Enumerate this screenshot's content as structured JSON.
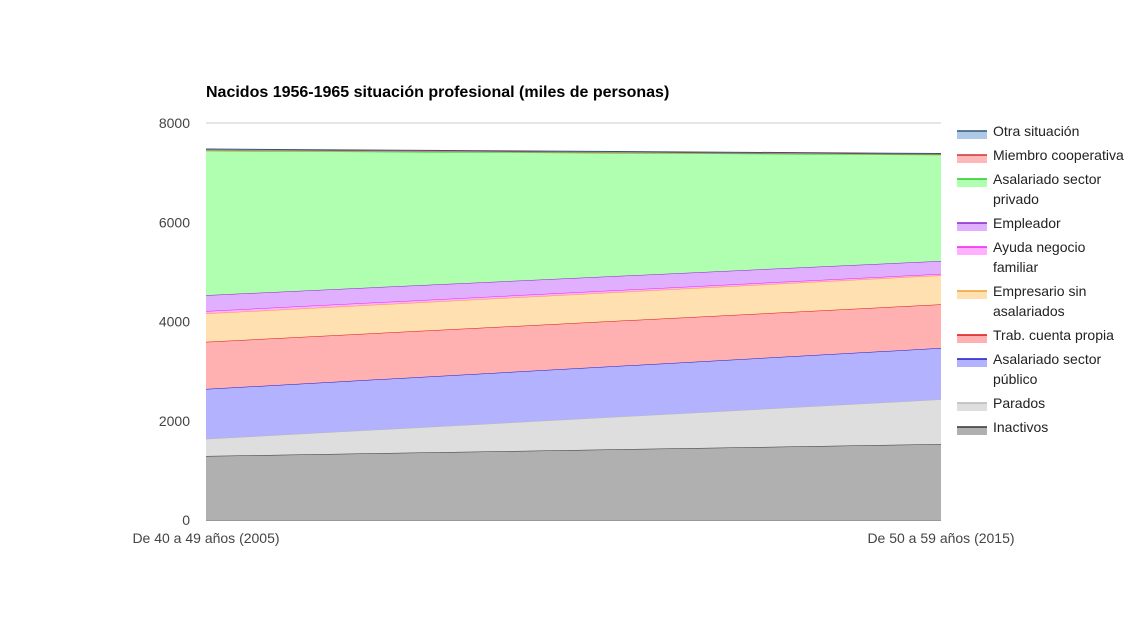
{
  "chart_data": {
    "type": "area",
    "stacked": true,
    "title": "Nacidos 1956-1965 situación profesional (miles de personas)",
    "xlabel": "",
    "ylabel": "",
    "categories": [
      "De 40 a 49 años (2005)",
      "De 50 a 59 años (2015)"
    ],
    "ylim": [
      0,
      8000
    ],
    "yticks": [
      "0",
      "2000",
      "4000",
      "6000",
      "8000"
    ],
    "grid": true,
    "legend_position": "right",
    "series": [
      {
        "name": "Inactivos",
        "values": [
          1290,
          1530
        ],
        "color": "#b0b0b0",
        "line": "#333333"
      },
      {
        "name": "Parados",
        "values": [
          345,
          900
        ],
        "color": "#dedede",
        "line": "#b8b8b8"
      },
      {
        "name": "Asalariado sector público",
        "values": [
          1005,
          1035
        ],
        "color": "#b2b2ff",
        "line": "#1a1acc"
      },
      {
        "name": "Trab. cuenta propia",
        "values": [
          950,
          880
        ],
        "color": "#ffb0b0",
        "line": "#dd1111"
      },
      {
        "name": "Empresario sin asalariados",
        "values": [
          570,
          585
        ],
        "color": "#ffe0b0",
        "line": "#f0a030"
      },
      {
        "name": "Ayuda negocio familiar",
        "values": [
          50,
          30
        ],
        "color": "#ffb0ff",
        "line": "#ee22ee"
      },
      {
        "name": "Empleador",
        "values": [
          320,
          260
        ],
        "color": "#e0b0ff",
        "line": "#8822cc"
      },
      {
        "name": "Asalariado sector privado",
        "values": [
          2910,
          2140
        ],
        "color": "#b0ffb0",
        "line": "#22cc22"
      },
      {
        "name": "Miembro cooperativa",
        "values": [
          20,
          15
        ],
        "color": "#ffb8b8",
        "line": "#cc3333"
      },
      {
        "name": "Otra situación",
        "values": [
          15,
          10
        ],
        "color": "#b0c8e8",
        "line": "#335577"
      }
    ],
    "legend_order": [
      {
        "index": 9,
        "lines": [
          "Otra situación"
        ]
      },
      {
        "index": 8,
        "lines": [
          "Miembro cooperativa"
        ]
      },
      {
        "index": 7,
        "lines": [
          "Asalariado sector",
          "privado"
        ]
      },
      {
        "index": 6,
        "lines": [
          "Empleador"
        ]
      },
      {
        "index": 5,
        "lines": [
          "Ayuda negocio",
          "familiar"
        ]
      },
      {
        "index": 4,
        "lines": [
          "Empresario sin",
          "asalariados"
        ]
      },
      {
        "index": 3,
        "lines": [
          "Trab. cuenta propia"
        ]
      },
      {
        "index": 2,
        "lines": [
          "Asalariado sector",
          "público"
        ]
      },
      {
        "index": 1,
        "lines": [
          "Parados"
        ]
      },
      {
        "index": 0,
        "lines": [
          "Inactivos"
        ]
      }
    ]
  }
}
